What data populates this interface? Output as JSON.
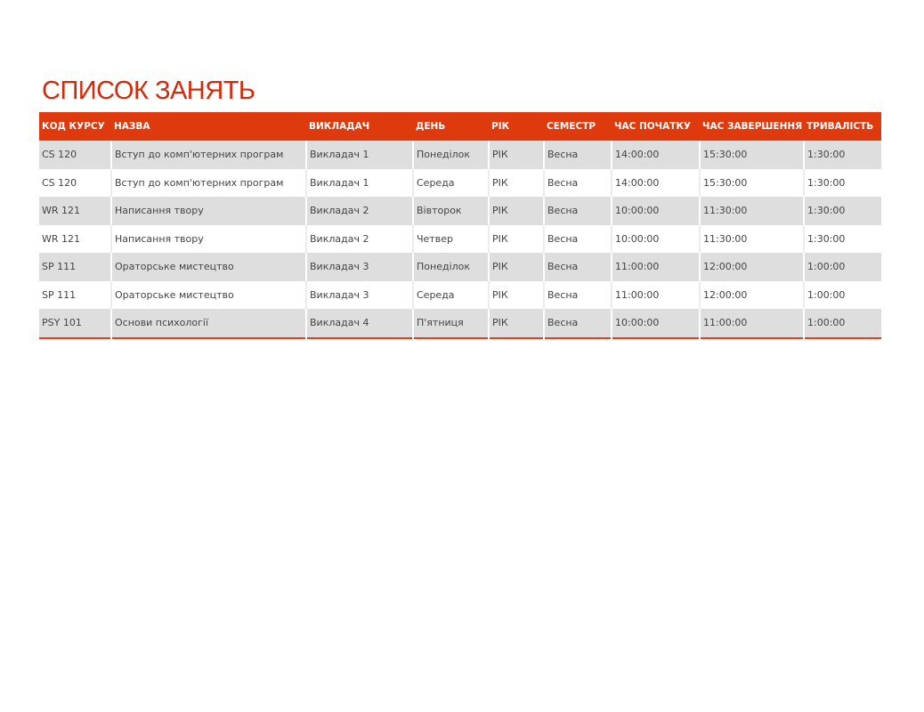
{
  "title": "СПИСОК ЗАНЯТЬ",
  "headers": [
    "КОД КУРСУ",
    "НАЗВА",
    "ВИКЛАДАЧ",
    "ДЕНЬ",
    "РІК",
    "СЕМЕСТР",
    "ЧАС ПОЧАТКУ",
    "ЧАС ЗАВЕРШЕННЯ",
    "ТРИВАЛІСТЬ"
  ],
  "rows": [
    [
      "CS 120",
      "Вступ до комп'ютерних програм",
      "Викладач 1",
      "Понеділок",
      "РІК",
      "Весна",
      "14:00:00",
      "15:30:00",
      "1:30:00"
    ],
    [
      "CS 120",
      "Вступ до комп'ютерних програм",
      "Викладач 1",
      "Середа",
      "РІК",
      "Весна",
      "14:00:00",
      "15:30:00",
      "1:30:00"
    ],
    [
      "WR 121",
      "Написання твору",
      "Викладач 2",
      "Вівторок",
      "РІК",
      "Весна",
      "10:00:00",
      "11:30:00",
      "1:30:00"
    ],
    [
      "WR 121",
      "Написання твору",
      "Викладач 2",
      "Четвер",
      "РІК",
      "Весна",
      "10:00:00",
      "11:30:00",
      "1:30:00"
    ],
    [
      "SP 111",
      "Ораторське мистецтво",
      "Викладач 3",
      "Понеділок",
      "РІК",
      "Весна",
      "11:00:00",
      "12:00:00",
      "1:00:00"
    ],
    [
      "SP 111",
      "Ораторське мистецтво",
      "Викладач 3",
      "Середа",
      "РІК",
      "Весна",
      "11:00:00",
      "12:00:00",
      "1:00:00"
    ],
    [
      "PSY 101",
      "Основи психології",
      "Викладач 4",
      "П'ятниця",
      "РІК",
      "Весна",
      "10:00:00",
      "11:00:00",
      "1:00:00"
    ]
  ],
  "colors": {
    "accent": "#df3a0e",
    "title": "#d42a0c",
    "band": "#dedede"
  }
}
